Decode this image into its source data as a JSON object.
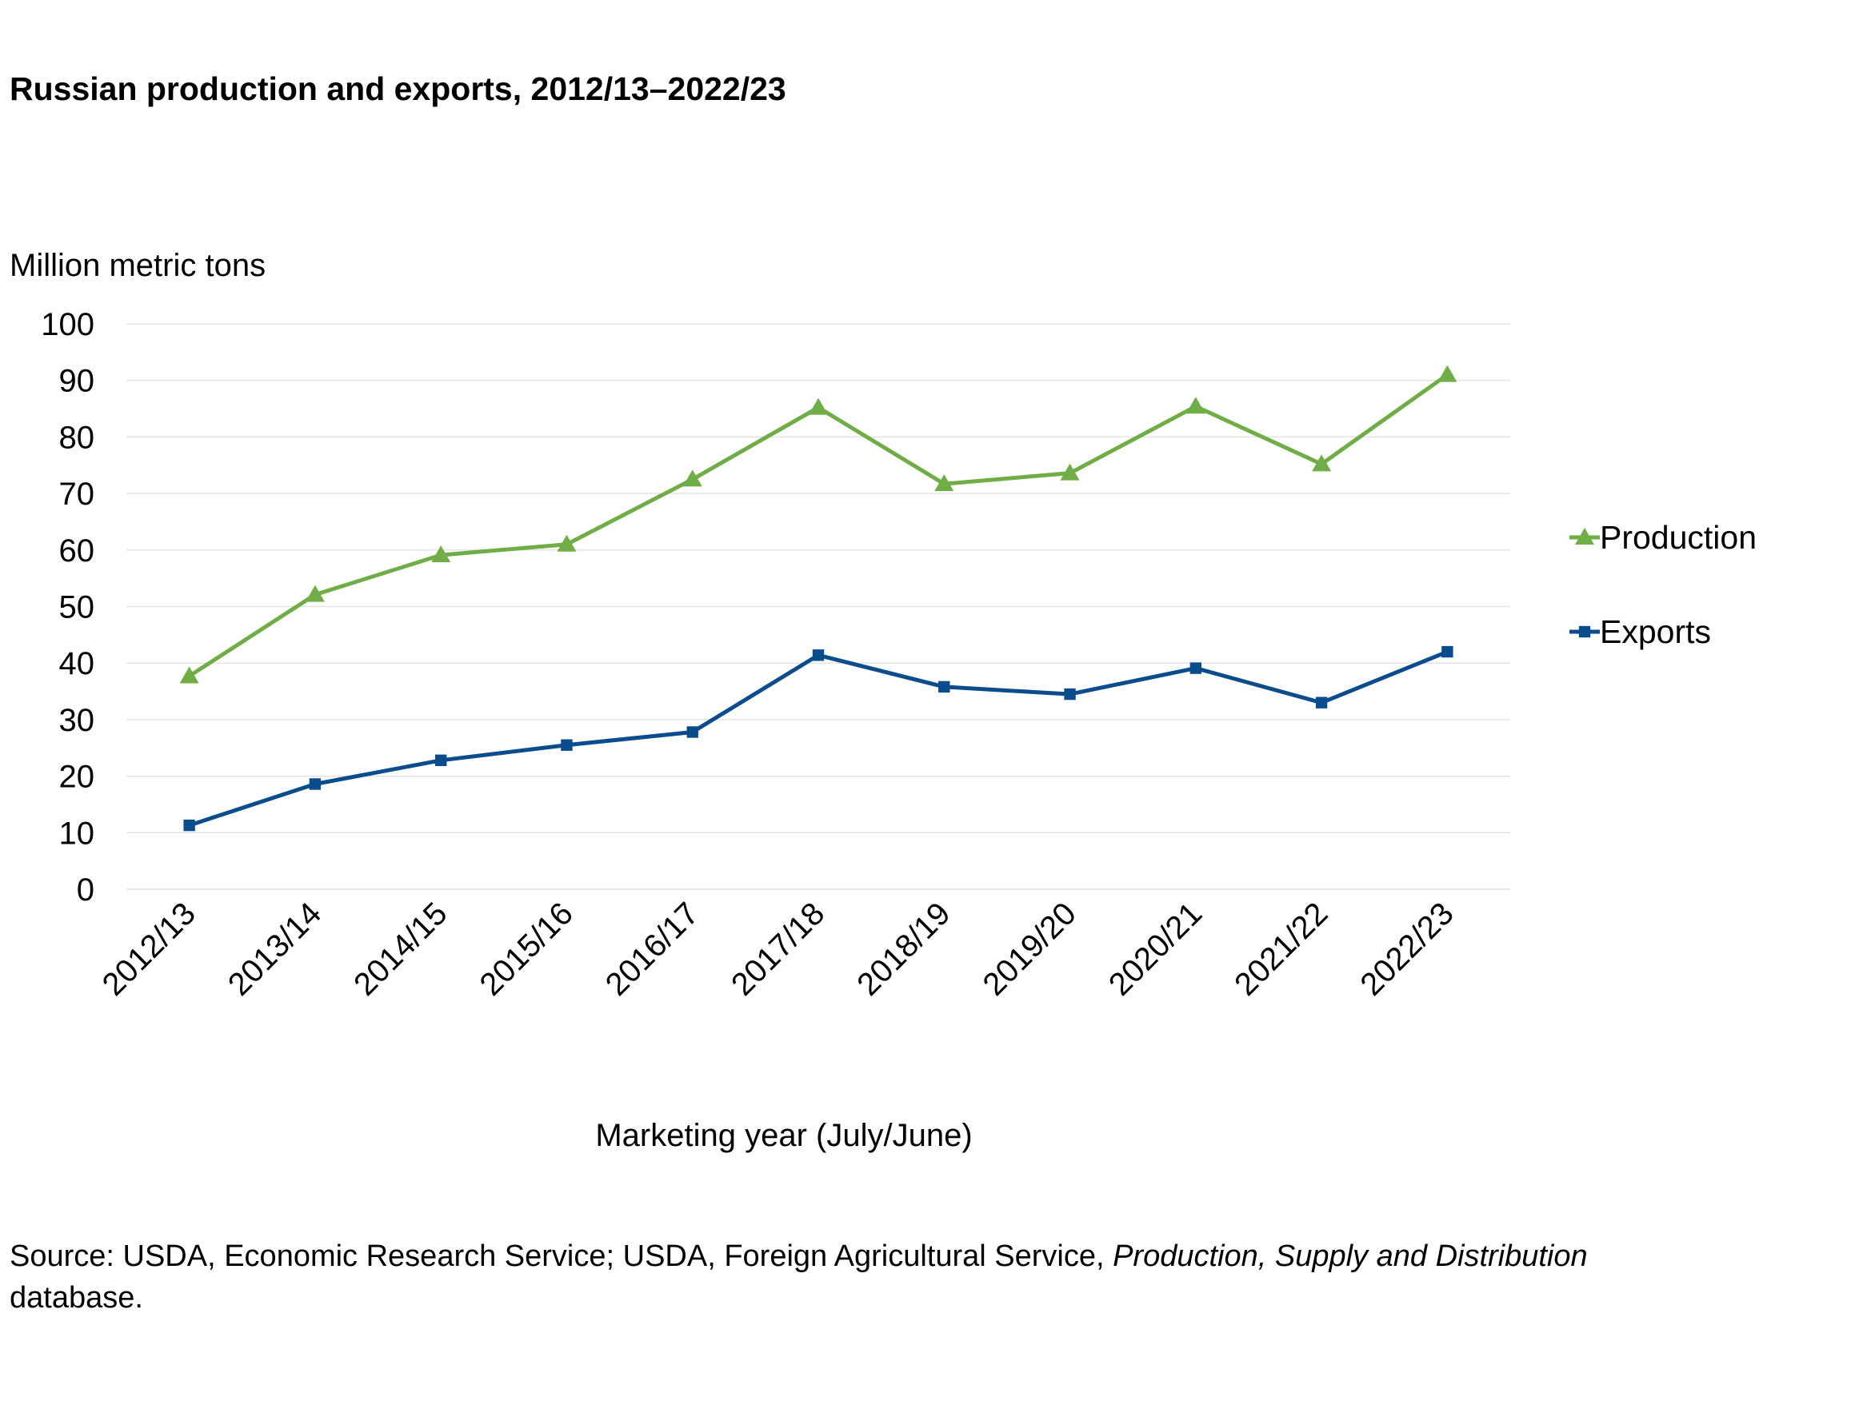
{
  "title": "Russian production and exports, 2012/13–2022/23",
  "source": {
    "prefix": "Source: USDA, Economic Research Service; USDA, Foreign Agricultural Service, ",
    "italic": "Production, Supply and Distribution",
    "suffix": "database."
  },
  "colors": {
    "production": "#70AD47",
    "exports": "#0B4C8C",
    "grid": "#E3E3E3"
  },
  "chart_data": {
    "type": "line",
    "title": "Russian production and exports, 2012/13–2022/23",
    "ylabel": "Million metric tons",
    "xlabel": "Marketing year (July/June)",
    "ylim": [
      0,
      100
    ],
    "yticks": [
      0,
      10,
      20,
      30,
      40,
      50,
      60,
      70,
      80,
      90,
      100
    ],
    "grid": true,
    "legend_position": "right",
    "categories": [
      "2012/13",
      "2013/14",
      "2014/15",
      "2015/16",
      "2016/17",
      "2017/18",
      "2018/19",
      "2019/20",
      "2020/21",
      "2021/22",
      "2022/23"
    ],
    "series": [
      {
        "name": "Production",
        "marker": "triangle",
        "color": "#70AD47",
        "values": [
          37.7,
          52.1,
          59.1,
          61.0,
          72.5,
          85.2,
          71.7,
          73.6,
          85.4,
          75.2,
          91.0
        ]
      },
      {
        "name": "Exports",
        "marker": "square",
        "color": "#0B4C8C",
        "values": [
          11.3,
          18.6,
          22.8,
          25.5,
          27.8,
          41.4,
          35.8,
          34.5,
          39.1,
          33.0,
          42.0
        ]
      }
    ]
  }
}
